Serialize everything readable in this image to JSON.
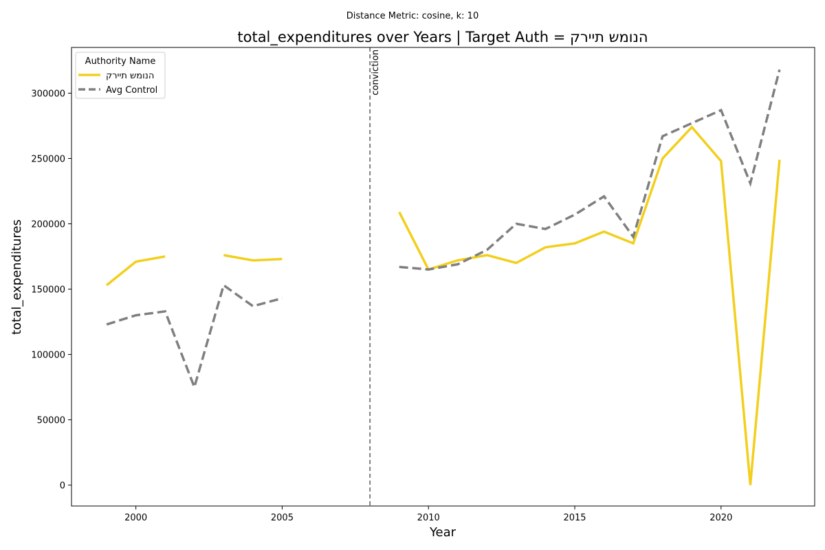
{
  "chart_data": {
    "type": "line",
    "suptitle": "Distance Metric: cosine, k: 10",
    "title": "total_expenditures over Years | Target Auth = הנומש תיירק",
    "xlabel": "Year",
    "ylabel": "total_expenditures",
    "xlim": [
      1997.8,
      2023.2
    ],
    "ylim": [
      -16000,
      335000
    ],
    "xticks": [
      2000,
      2005,
      2010,
      2015,
      2020
    ],
    "yticks": [
      0,
      50000,
      100000,
      150000,
      200000,
      250000,
      300000
    ],
    "grid": false,
    "legend": {
      "title": "Authority Name",
      "placement": "upper-left"
    },
    "vline": {
      "x": 2008,
      "label": "conviction",
      "color": "#7f7f7f"
    },
    "x": [
      1999,
      2000,
      2001,
      2002,
      2003,
      2004,
      2005,
      2006,
      2007,
      2008,
      2009,
      2010,
      2011,
      2012,
      2013,
      2014,
      2015,
      2016,
      2017,
      2018,
      2019,
      2020,
      2021,
      2022
    ],
    "series": [
      {
        "name": "הנומש תיירק",
        "color": "#f2cf1d",
        "style": "solid",
        "values": [
          153000,
          171000,
          175000,
          null,
          176000,
          172000,
          173000,
          null,
          null,
          null,
          209000,
          165000,
          172000,
          176000,
          170000,
          182000,
          185000,
          194000,
          185000,
          250000,
          274000,
          248000,
          0,
          249000
        ]
      },
      {
        "name": "Avg Control",
        "color": "#7f7f7f",
        "style": "dashed",
        "values": [
          123000,
          130000,
          133000,
          75000,
          153000,
          137000,
          143000,
          null,
          null,
          null,
          167000,
          165000,
          169000,
          180000,
          200000,
          196000,
          207000,
          221000,
          190000,
          267000,
          277000,
          287000,
          231000,
          318000
        ]
      }
    ]
  }
}
